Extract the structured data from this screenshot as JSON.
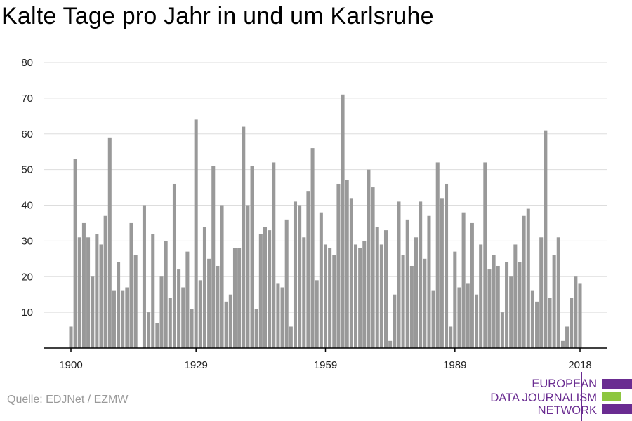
{
  "title": "Kalte Tage pro Jahr in und um Karlsruhe",
  "source": "Quelle: EDJNet / EZMW",
  "logo": {
    "lines": [
      "EUROPEAN",
      "DATA JOURNALISM",
      "NETWORK"
    ],
    "colors": {
      "purple": "#6a2c91",
      "green": "#8dc63f"
    }
  },
  "colors": {
    "bar": "#999999",
    "grid": "#dddddd",
    "axis": "#000000"
  },
  "chart_data": {
    "type": "bar",
    "x": [
      1900,
      1901,
      1902,
      1903,
      1904,
      1905,
      1906,
      1907,
      1908,
      1909,
      1910,
      1911,
      1912,
      1913,
      1914,
      1915,
      1916,
      1917,
      1918,
      1919,
      1920,
      1921,
      1922,
      1923,
      1924,
      1925,
      1926,
      1927,
      1928,
      1929,
      1930,
      1931,
      1932,
      1933,
      1934,
      1935,
      1936,
      1937,
      1938,
      1939,
      1940,
      1941,
      1942,
      1943,
      1944,
      1945,
      1946,
      1947,
      1948,
      1949,
      1950,
      1951,
      1952,
      1953,
      1954,
      1955,
      1956,
      1957,
      1958,
      1959,
      1960,
      1961,
      1962,
      1963,
      1964,
      1965,
      1966,
      1967,
      1968,
      1969,
      1970,
      1971,
      1972,
      1973,
      1974,
      1975,
      1976,
      1977,
      1978,
      1979,
      1980,
      1981,
      1982,
      1983,
      1984,
      1985,
      1986,
      1987,
      1988,
      1989,
      1990,
      1991,
      1992,
      1993,
      1994,
      1995,
      1996,
      1997,
      1998,
      1999,
      2000,
      2001,
      2002,
      2003,
      2004,
      2005,
      2006,
      2007,
      2008,
      2009,
      2010,
      2011,
      2012,
      2013,
      2014,
      2015,
      2016,
      2017,
      2018
    ],
    "values": [
      6,
      53,
      31,
      35,
      31,
      20,
      32,
      29,
      37,
      59,
      16,
      24,
      16,
      17,
      35,
      26,
      0,
      40,
      10,
      32,
      7,
      20,
      30,
      14,
      46,
      22,
      17,
      27,
      11,
      64,
      19,
      34,
      25,
      51,
      23,
      40,
      13,
      15,
      28,
      28,
      62,
      40,
      51,
      11,
      32,
      34,
      33,
      52,
      18,
      17,
      36,
      6,
      41,
      40,
      31,
      44,
      56,
      19,
      38,
      29,
      28,
      26,
      46,
      71,
      47,
      42,
      29,
      28,
      30,
      50,
      45,
      34,
      29,
      33,
      2,
      15,
      41,
      26,
      36,
      23,
      31,
      41,
      25,
      37,
      16,
      52,
      42,
      46,
      6,
      27,
      17,
      38,
      18,
      35,
      15,
      29,
      52,
      22,
      26,
      23,
      10,
      24,
      20,
      29,
      24,
      37,
      39,
      16,
      13,
      31,
      61,
      14,
      26,
      31,
      2,
      6,
      14,
      20,
      18
    ],
    "xticks": [
      "1900",
      "1929",
      "1959",
      "1989",
      "2018"
    ],
    "yticks": [
      10,
      20,
      30,
      40,
      50,
      60,
      70,
      80
    ],
    "ylim": [
      0,
      80
    ],
    "grid": true
  }
}
